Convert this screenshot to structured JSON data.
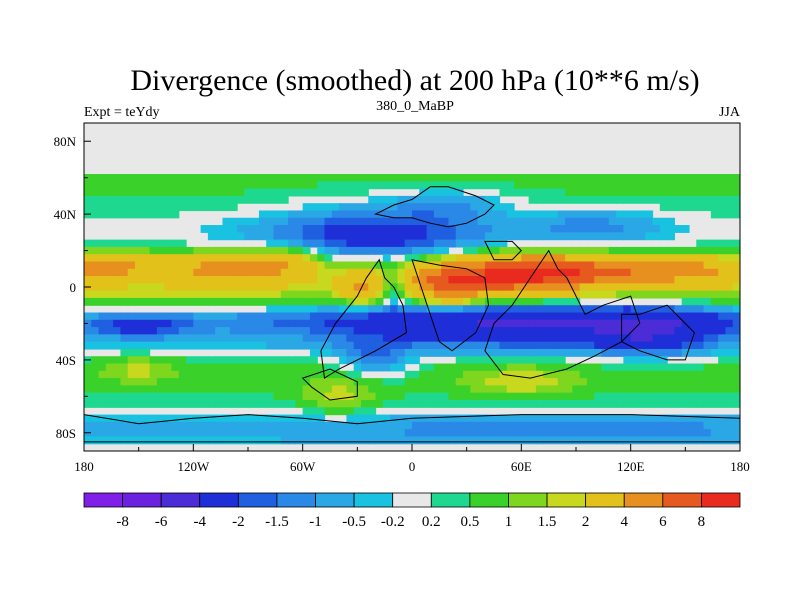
{
  "chart_data": {
    "type": "heatmap",
    "title": "Divergence (smoothed) at 200 hPa (10**6 m/s)",
    "subtitle": "380_0_MaBP",
    "left_label": "Expt = teYdy",
    "right_label": "JJA",
    "x_ticks": [
      {
        "value": -180,
        "label": "180"
      },
      {
        "value": -120,
        "label": "120W"
      },
      {
        "value": -60,
        "label": "60W"
      },
      {
        "value": 0,
        "label": "0"
      },
      {
        "value": 60,
        "label": "60E"
      },
      {
        "value": 120,
        "label": "120E"
      },
      {
        "value": 180,
        "label": "180"
      }
    ],
    "y_ticks": [
      {
        "value": 80,
        "label": "80N"
      },
      {
        "value": 40,
        "label": "40N"
      },
      {
        "value": 0,
        "label": "0"
      },
      {
        "value": -40,
        "label": "40S"
      },
      {
        "value": -80,
        "label": "80S"
      }
    ],
    "xlim": [
      -180,
      180
    ],
    "ylim": [
      -90,
      90
    ],
    "levels": [
      "-8",
      "-6",
      "-4",
      "-2",
      "-1.5",
      "-1",
      "-0.5",
      "-0.2",
      "0.2",
      "0.5",
      "1",
      "1.5",
      "2",
      "4",
      "6",
      "8"
    ],
    "colors": [
      "#7f1fe8",
      "#6a22e0",
      "#4b2cd6",
      "#1f2fd8",
      "#1f5fe0",
      "#2a88e6",
      "#2aa8e6",
      "#19c2e0",
      "#e8e8e8",
      "#1fd890",
      "#3ad22a",
      "#7ed61f",
      "#c8d81f",
      "#e2c21a",
      "#e8901f",
      "#e65a1f",
      "#e82a1f"
    ],
    "default_value": 0,
    "blobs": [
      {
        "lon": -180,
        "lat": 58,
        "w": 360,
        "h": 28,
        "v": 0.6,
        "shape": "band"
      },
      {
        "lon": -180,
        "lat": 24,
        "w": 360,
        "h": 14,
        "v": -0.7,
        "shape": "band"
      },
      {
        "lon": -180,
        "lat": 10,
        "w": 360,
        "h": 16,
        "v": 1.7,
        "shape": "band"
      },
      {
        "lon": -180,
        "lat": -5,
        "w": 360,
        "h": 10,
        "v": 0.8,
        "shape": "band"
      },
      {
        "lon": -180,
        "lat": -18,
        "w": 360,
        "h": 8,
        "v": -1.2,
        "shape": "band"
      },
      {
        "lon": -180,
        "lat": -32,
        "w": 360,
        "h": 8,
        "v": -0.6,
        "shape": "band"
      },
      {
        "lon": -180,
        "lat": -48,
        "w": 360,
        "h": 18,
        "v": 0.7,
        "shape": "band"
      },
      {
        "lon": -180,
        "lat": -78,
        "w": 360,
        "h": 10,
        "v": -0.6,
        "shape": "band"
      },
      {
        "lon": -170,
        "lat": 11,
        "w": 30,
        "h": 7,
        "v": 3.5
      },
      {
        "lon": -100,
        "lat": 10,
        "w": 30,
        "h": 8,
        "v": 3.5
      },
      {
        "lon": -70,
        "lat": 14,
        "w": 20,
        "h": 8,
        "v": 2.2
      },
      {
        "lon": -20,
        "lat": 28,
        "w": 60,
        "h": 16,
        "v": -2.6
      },
      {
        "lon": 20,
        "lat": 46,
        "w": 30,
        "h": 8,
        "v": -1.2
      },
      {
        "lon": 100,
        "lat": 34,
        "w": 40,
        "h": 10,
        "v": -1.2
      },
      {
        "lon": 45,
        "lat": 5,
        "w": 45,
        "h": 10,
        "v": 5.2
      },
      {
        "lon": 20,
        "lat": 0,
        "w": 15,
        "h": 10,
        "v": 3.0
      },
      {
        "lon": 75,
        "lat": 10,
        "w": 40,
        "h": 8,
        "v": 3.5
      },
      {
        "lon": 120,
        "lat": 8,
        "w": 45,
        "h": 7,
        "v": 3.0
      },
      {
        "lon": 160,
        "lat": 10,
        "w": 25,
        "h": 7,
        "v": 1.7
      },
      {
        "lon": -28,
        "lat": 0,
        "w": 10,
        "h": 10,
        "v": 2.4
      },
      {
        "lon": -10,
        "lat": 0,
        "w": 8,
        "h": 10,
        "v": -1.8
      },
      {
        "lon": 60,
        "lat": -20,
        "w": 100,
        "h": 12,
        "v": -3.2
      },
      {
        "lon": 130,
        "lat": -25,
        "w": 30,
        "h": 12,
        "v": -2.4
      },
      {
        "lon": -150,
        "lat": -22,
        "w": 25,
        "h": 6,
        "v": -1.6
      },
      {
        "lon": -20,
        "lat": -40,
        "w": 20,
        "h": 10,
        "v": -1.6
      },
      {
        "lon": -40,
        "lat": -60,
        "w": 22,
        "h": 10,
        "v": 1.2
      },
      {
        "lon": 60,
        "lat": -52,
        "w": 30,
        "h": 8,
        "v": 1.3
      },
      {
        "lon": -150,
        "lat": -45,
        "w": 20,
        "h": 8,
        "v": 1.0
      },
      {
        "lon": 80,
        "lat": -78,
        "w": 120,
        "h": 8,
        "v": -0.8
      }
    ],
    "land": [
      [
        [
          -20,
          40
        ],
        [
          -10,
          45
        ],
        [
          0,
          48
        ],
        [
          10,
          55
        ],
        [
          20,
          55
        ],
        [
          35,
          50
        ],
        [
          45,
          45
        ],
        [
          40,
          40
        ],
        [
          30,
          35
        ],
        [
          20,
          33
        ],
        [
          10,
          35
        ],
        [
          0,
          38
        ],
        [
          -10,
          38
        ]
      ],
      [
        [
          -18,
          15
        ],
        [
          -15,
          5
        ],
        [
          -10,
          0
        ],
        [
          -5,
          -10
        ],
        [
          -3,
          -25
        ],
        [
          -20,
          -35
        ],
        [
          -40,
          -45
        ],
        [
          -48,
          -50
        ],
        [
          -50,
          -35
        ],
        [
          -42,
          -20
        ],
        [
          -30,
          -5
        ],
        [
          -25,
          5
        ]
      ],
      [
        [
          0,
          15
        ],
        [
          15,
          12
        ],
        [
          30,
          10
        ],
        [
          40,
          5
        ],
        [
          42,
          -10
        ],
        [
          35,
          -25
        ],
        [
          22,
          -35
        ],
        [
          15,
          -30
        ],
        [
          10,
          -15
        ],
        [
          5,
          0
        ]
      ],
      [
        [
          40,
          25
        ],
        [
          55,
          25
        ],
        [
          60,
          20
        ],
        [
          55,
          15
        ],
        [
          45,
          15
        ]
      ],
      [
        [
          75,
          20
        ],
        [
          80,
          10
        ],
        [
          85,
          5
        ],
        [
          90,
          -5
        ],
        [
          95,
          -15
        ],
        [
          105,
          -10
        ],
        [
          120,
          -5
        ],
        [
          125,
          -20
        ],
        [
          115,
          -30
        ],
        [
          100,
          -38
        ],
        [
          85,
          -45
        ],
        [
          65,
          -50
        ],
        [
          50,
          -48
        ],
        [
          40,
          -35
        ],
        [
          45,
          -20
        ],
        [
          55,
          -10
        ],
        [
          65,
          5
        ]
      ],
      [
        [
          115,
          -15
        ],
        [
          125,
          -15
        ],
        [
          140,
          -10
        ],
        [
          155,
          -25
        ],
        [
          150,
          -40
        ],
        [
          140,
          -40
        ],
        [
          125,
          -35
        ],
        [
          115,
          -30
        ]
      ],
      [
        [
          -60,
          -50
        ],
        [
          -55,
          -55
        ],
        [
          -45,
          -62
        ],
        [
          -30,
          -60
        ],
        [
          -30,
          -52
        ],
        [
          -45,
          -45
        ]
      ],
      [
        [
          -180,
          -70
        ],
        [
          -150,
          -75
        ],
        [
          -120,
          -72
        ],
        [
          -90,
          -70
        ],
        [
          -60,
          -72
        ],
        [
          -30,
          -75
        ],
        [
          0,
          -72
        ],
        [
          60,
          -70
        ],
        [
          120,
          -70
        ],
        [
          180,
          -72
        ],
        [
          180,
          -85
        ],
        [
          -180,
          -85
        ]
      ]
    ]
  }
}
